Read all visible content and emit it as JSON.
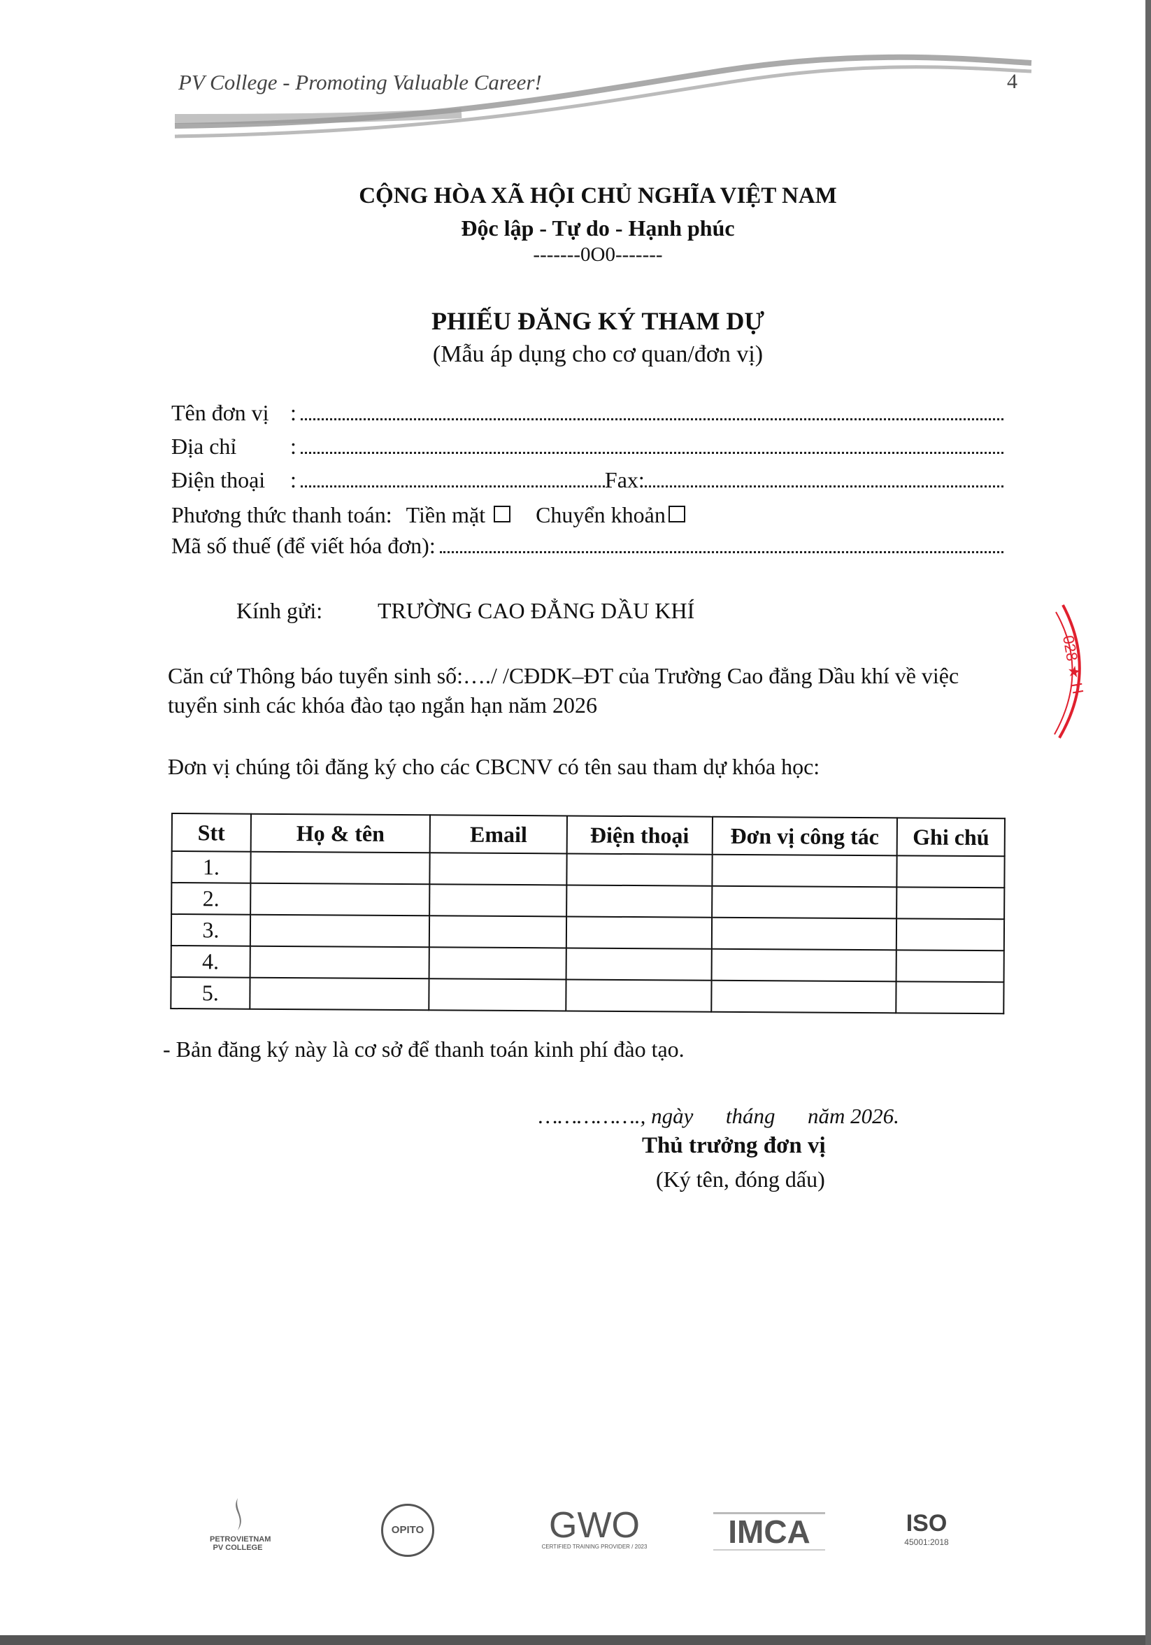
{
  "header": {
    "tagline": "PV College - Promoting Valuable Career!",
    "page_number": "4"
  },
  "national": {
    "title": "CỘNG HÒA XÃ HỘI CHỦ NGHĨA VIỆT NAM",
    "motto": "Độc lập - Tự do - Hạnh phúc",
    "separator": "-------0O0-------"
  },
  "form": {
    "title": "PHIẾU ĐĂNG KÝ THAM DỰ",
    "subtitle": "(Mẫu áp dụng cho cơ quan/đơn vị)",
    "fields": {
      "unit_name": "Tên đơn vị",
      "address": "Địa chỉ",
      "phone": "Điện thoại",
      "fax": "Fax:",
      "payment_method": "Phương thức thanh toán:",
      "cash": "Tiền mặt",
      "transfer": "Chuyển khoản",
      "tax_code": "Mã số thuế (để viết hóa đơn):",
      "colon": ":"
    }
  },
  "recipient": {
    "label": "Kính gửi:",
    "name": "TRƯỜNG CAO ĐẲNG DẦU KHÍ"
  },
  "body": {
    "basis_line1": "Căn cứ Thông báo tuyển sinh số:…./ /CĐDK–ĐT của Trường Cao đẳng Dầu khí về việc",
    "basis_line2": "tuyển sinh các khóa đào tạo ngắn hạn năm 2026",
    "intro": "Đơn vị chúng tôi đăng ký cho các CBCNV có tên sau tham dự khóa học:"
  },
  "table": {
    "headers": [
      "Stt",
      "Họ & tên",
      "Email",
      "Điện thoại",
      "Đơn vị công tác",
      "Ghi chú"
    ],
    "rows": [
      "1.",
      "2.",
      "3.",
      "4.",
      "5."
    ]
  },
  "note": "- Bản đăng ký này là cơ sở để thanh toán kinh phí đào tạo.",
  "signature": {
    "date": "……………., ngày      tháng      năm 2026.",
    "title": "Thủ trưởng đơn vị",
    "instruction": "(Ký tên, đóng dấu)"
  },
  "stamp": {
    "text": "028 ★ H",
    "color": "#e0202e"
  },
  "footer_logos": {
    "petrovietnam": "PETROVIETNAM PV COLLEGE",
    "opito": "OPITO",
    "gwo": "GWO",
    "gwo_caption": "CERTIFIED TRAINING PROVIDER / 2023",
    "imca": "IMCA",
    "iso": "ISO",
    "iso_caption": "45001:2018"
  }
}
